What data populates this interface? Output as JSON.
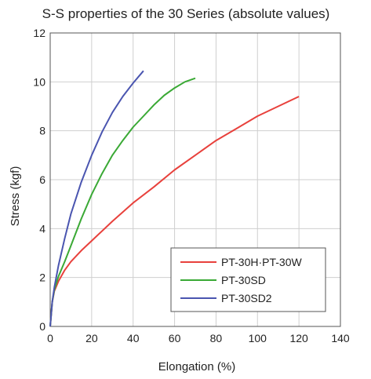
{
  "chart_data": {
    "type": "line",
    "title": "S-S properties of the 30 Series (absolute values)",
    "xlabel": "Elongation (%)",
    "ylabel": "Stress (kgf)",
    "xlim": [
      0,
      140
    ],
    "ylim": [
      0,
      12
    ],
    "xticks": [
      0,
      20,
      40,
      60,
      80,
      100,
      120,
      140
    ],
    "yticks": [
      0,
      2,
      4,
      6,
      8,
      10,
      12
    ],
    "grid": true,
    "legend_position": "bottom-right",
    "series": [
      {
        "name": "PT-30H·PT-30W",
        "color": "#e8413c",
        "x": [
          0,
          1,
          2,
          4,
          7,
          10,
          15,
          20,
          30,
          40,
          50,
          60,
          70,
          80,
          90,
          100,
          110,
          120
        ],
        "y": [
          0,
          1.0,
          1.45,
          1.85,
          2.3,
          2.65,
          3.1,
          3.5,
          4.3,
          5.05,
          5.7,
          6.4,
          7.0,
          7.6,
          8.1,
          8.6,
          9.0,
          9.4
        ]
      },
      {
        "name": "PT-30SD",
        "color": "#3aa935",
        "x": [
          0,
          1,
          2,
          4,
          7,
          10,
          15,
          20,
          25,
          30,
          35,
          40,
          45,
          50,
          55,
          60,
          65,
          70
        ],
        "y": [
          0,
          1.0,
          1.5,
          2.05,
          2.65,
          3.3,
          4.4,
          5.4,
          6.25,
          7.0,
          7.6,
          8.15,
          8.6,
          9.05,
          9.45,
          9.75,
          10.0,
          10.15
        ]
      },
      {
        "name": "PT-30SD2",
        "color": "#4a55b0",
        "x": [
          0,
          1,
          2,
          4,
          7,
          10,
          15,
          20,
          25,
          30,
          35,
          40,
          45
        ],
        "y": [
          0,
          1.0,
          1.6,
          2.5,
          3.6,
          4.6,
          5.9,
          7.0,
          7.95,
          8.75,
          9.4,
          9.95,
          10.45
        ]
      }
    ]
  }
}
